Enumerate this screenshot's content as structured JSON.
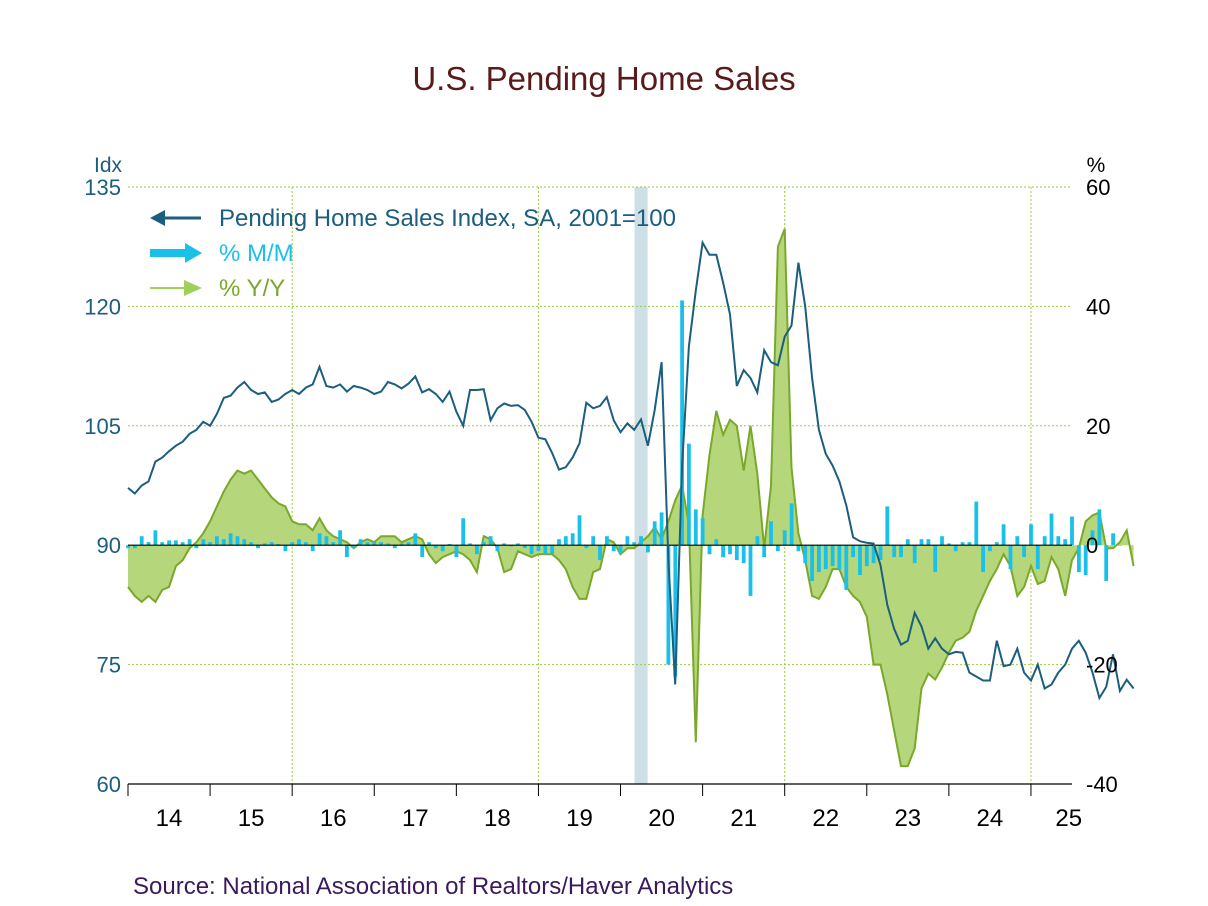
{
  "chart_data": {
    "type": "line+bar+area",
    "title": "U.S. Pending Home Sales",
    "source": "Source:  National Association of Realtors/Haver Analytics",
    "left_axis": {
      "unit_label": "Idx",
      "min": 60,
      "max": 135,
      "ticks": [
        "135",
        "120",
        "105",
        "90",
        "75",
        "60"
      ],
      "tick_values": [
        135,
        120,
        105,
        90,
        75,
        60
      ]
    },
    "right_axis": {
      "unit_label": "%",
      "min": -40,
      "max": 60,
      "ticks": [
        "60",
        "40",
        "20",
        "0",
        "-20",
        "-40"
      ],
      "tick_values": [
        60,
        40,
        20,
        0,
        -20,
        -40
      ]
    },
    "x_axis": {
      "start": 2014.0,
      "end": 2025.5,
      "tick_labels": [
        "14",
        "15",
        "16",
        "17",
        "18",
        "19",
        "20",
        "21",
        "22",
        "23",
        "24",
        "25"
      ],
      "label_years": [
        2014,
        2015,
        2016,
        2017,
        2018,
        2019,
        2020,
        2021,
        2022,
        2023,
        2024,
        2025
      ]
    },
    "vertical_gridlines_years": [
      2016,
      2019,
      2022,
      2025
    ],
    "grid": true,
    "recession_shading": {
      "start": 2020.17,
      "end": 2020.33,
      "color": "#cfdfe6"
    },
    "legend": {
      "position": "top-left",
      "items": [
        {
          "label": "Pending Home Sales Index, SA, 2001=100",
          "color": "#1b5e7e",
          "style": "line"
        },
        {
          "label": "% M/M",
          "color": "#19c0ea",
          "style": "bar"
        },
        {
          "label": "% Y/Y",
          "color": "#7aa82a",
          "fill": "#b5d67a",
          "style": "area"
        }
      ]
    },
    "series": [
      {
        "name": "Pending Home Sales Index, SA, 2001=100",
        "axis": "left",
        "color": "#1b5e7e",
        "start": 2014.0,
        "step": 0.0833333,
        "values": [
          97.2,
          96.5,
          97.5,
          98.0,
          100.5,
          101.0,
          101.8,
          102.5,
          103.0,
          104.0,
          104.5,
          105.5,
          105.0,
          106.5,
          108.5,
          108.8,
          109.8,
          110.5,
          109.5,
          109.0,
          109.2,
          108.0,
          108.3,
          109.0,
          109.5,
          109.0,
          109.8,
          110.2,
          112.4,
          110.0,
          109.8,
          110.2,
          109.3,
          110.0,
          109.8,
          109.5,
          109.0,
          109.3,
          110.5,
          110.2,
          109.7,
          110.3,
          111.2,
          109.2,
          109.6,
          109.0,
          108.0,
          109.3,
          106.8,
          105.0,
          109.5,
          109.5,
          109.6,
          105.7,
          107.2,
          107.8,
          107.5,
          107.6,
          107.0,
          105.5,
          103.5,
          103.3,
          101.6,
          99.5,
          99.8,
          101.0,
          102.8,
          107.9,
          107.2,
          107.5,
          108.6,
          105.7,
          104.2,
          105.3,
          104.5,
          105.8,
          102.5,
          107.0,
          113.0,
          88.0,
          72.5,
          100.0,
          115.0,
          122.0,
          128.0,
          126.5,
          126.5,
          123.0,
          119.0,
          110.0,
          112.0,
          111.0,
          109.2,
          114.5,
          113.0,
          112.6,
          116.2,
          117.6,
          125.5,
          120.0,
          111.0,
          104.5,
          101.5,
          100.0,
          98.0,
          95.0,
          91.0,
          90.5,
          90.3,
          90.2,
          87.5,
          82.5,
          79.5,
          77.5,
          78.0,
          81.5,
          79.8,
          77.0,
          78.3,
          77.0,
          76.3,
          76.6,
          76.5,
          74.0,
          73.5,
          73.0,
          73.0,
          78.0,
          74.8,
          75.0,
          77.0,
          74.0,
          73.0,
          75.0,
          72.0,
          72.5,
          74.0,
          75.0,
          77.0,
          78.0,
          76.5,
          74.0,
          70.8,
          72.2,
          76.3,
          71.7,
          73.1,
          72.0
        ],
        "note": "monthly, Jan 2014 onward (last value ≈ 72.0)"
      },
      {
        "name": "% M/M",
        "axis": "right",
        "color": "#19c0ea",
        "start": 2014.0,
        "step": 0.0833333,
        "values": [
          -0.5,
          -0.5,
          1.5,
          0.5,
          2.5,
          0.5,
          0.8,
          0.8,
          0.5,
          1.0,
          -0.5,
          1.0,
          0.5,
          1.5,
          1.0,
          2.0,
          1.5,
          1.0,
          0.5,
          -0.5,
          0.3,
          0.5,
          0.2,
          -1.0,
          0.5,
          1.0,
          0.5,
          -1.0,
          2.0,
          1.5,
          0.5,
          2.5,
          -2.0,
          -0.5,
          1.0,
          0.5,
          0.5,
          0.5,
          0.3,
          -0.5,
          0.3,
          0.5,
          2.0,
          -2.0,
          0.5,
          -0.5,
          -1.0,
          0.2,
          -2.0,
          4.5,
          0.3,
          -1.5,
          0.5,
          1.5,
          -1.0,
          0.3,
          -0.2,
          0.3,
          -0.5,
          -1.5,
          -1.0,
          -1.5,
          -1.5,
          1.0,
          1.5,
          2.0,
          5.0,
          -0.5,
          1.5,
          -2.5,
          1.5,
          -1.0,
          -1.5,
          1.5,
          0.5,
          1.5,
          -1.2,
          4.0,
          5.5,
          -20.0,
          -22.0,
          41.0,
          17.0,
          6.0,
          4.5,
          -1.5,
          1.0,
          -2.0,
          -1.5,
          -2.5,
          -3.0,
          -8.5,
          1.5,
          -2.0,
          4.0,
          -1.0,
          2.5,
          7.0,
          -1.0,
          -3.0,
          -6.0,
          -4.5,
          -4.0,
          -3.5,
          -4.0,
          -7.5,
          -2.0,
          -5.0,
          -3.5,
          -3.0,
          -2.5,
          6.5,
          -2.0,
          -2.0,
          1.0,
          -3.0,
          1.0,
          1.0,
          -4.5,
          1.5,
          0.3,
          -1.0,
          0.5,
          0.5,
          7.3,
          -4.5,
          -1.0,
          0.5,
          3.5,
          -4.0,
          1.5,
          -2.0,
          3.5,
          -4.0,
          1.5,
          5.3,
          1.5,
          1.0,
          4.8,
          -4.5,
          -5.0,
          2.5,
          6.0,
          -6.0,
          2.0,
          0.0
        ],
        "note": "monthly bars, Jan 2014 onward"
      },
      {
        "name": "% Y/Y",
        "axis": "right",
        "color": "#7aa82a",
        "fill": "#b5d67a",
        "start": 2014.0,
        "step": 0.0833333,
        "values": [
          -7.0,
          -8.5,
          -9.5,
          -8.5,
          -9.5,
          -7.5,
          -7.0,
          -3.5,
          -2.5,
          -0.5,
          0.5,
          2.0,
          4.0,
          6.5,
          9.0,
          11.0,
          12.5,
          12.0,
          12.5,
          11.0,
          9.5,
          8.0,
          7.0,
          6.5,
          4.0,
          3.5,
          3.5,
          2.5,
          4.5,
          2.5,
          1.5,
          1.0,
          0.5,
          -0.5,
          0.5,
          1.0,
          0.5,
          1.5,
          1.5,
          1.5,
          0.5,
          1.0,
          1.5,
          1.0,
          -1.5,
          -3.0,
          -2.0,
          -1.5,
          -1.0,
          -1.5,
          -2.5,
          -4.5,
          1.5,
          1.0,
          -0.5,
          -4.5,
          -4.0,
          -1.0,
          -1.5,
          -2.0,
          -1.5,
          -1.5,
          -1.5,
          -2.5,
          -4.0,
          -7.0,
          -9.0,
          -9.0,
          -4.5,
          -4.0,
          1.0,
          0.5,
          -1.5,
          -0.5,
          -0.5,
          0.5,
          1.5,
          3.0,
          1.0,
          4.0,
          7.5,
          10.0,
          3.5,
          -33.0,
          5.0,
          15.0,
          22.5,
          18.5,
          21.0,
          20.0,
          12.5,
          20.0,
          12.0,
          -0.5,
          10.0,
          50.0,
          53.0,
          13.0,
          2.0,
          -2.5,
          -8.5,
          -9.0,
          -7.0,
          -4.0,
          -4.0,
          -7.0,
          -8.5,
          -9.5,
          -12.0,
          -20.0,
          -20.0,
          -25.0,
          -31.0,
          -37.0,
          -37.0,
          -34.0,
          -24.0,
          -21.5,
          -22.5,
          -20.5,
          -18.0,
          -16.0,
          -15.5,
          -14.5,
          -11.0,
          -8.5,
          -6.0,
          -4.0,
          -1.5,
          -3.5,
          -8.5,
          -7.0,
          -3.5,
          -6.5,
          -6.0,
          -2.0,
          -4.0,
          -8.5,
          -2.5,
          -0.5,
          4.0,
          5.0,
          5.5,
          -0.5,
          -0.5,
          0.5,
          2.5,
          -3.5
        ],
        "note": "monthly, Jan 2014 onward (area filled to zero)"
      }
    ]
  },
  "colors": {
    "title": "#5a1a1a",
    "left_axis": "#1b5e7e",
    "right_axis": "#000000",
    "grid": "#9acb3c",
    "zero_line": "#000000",
    "source_text": "#3a1a5c"
  }
}
